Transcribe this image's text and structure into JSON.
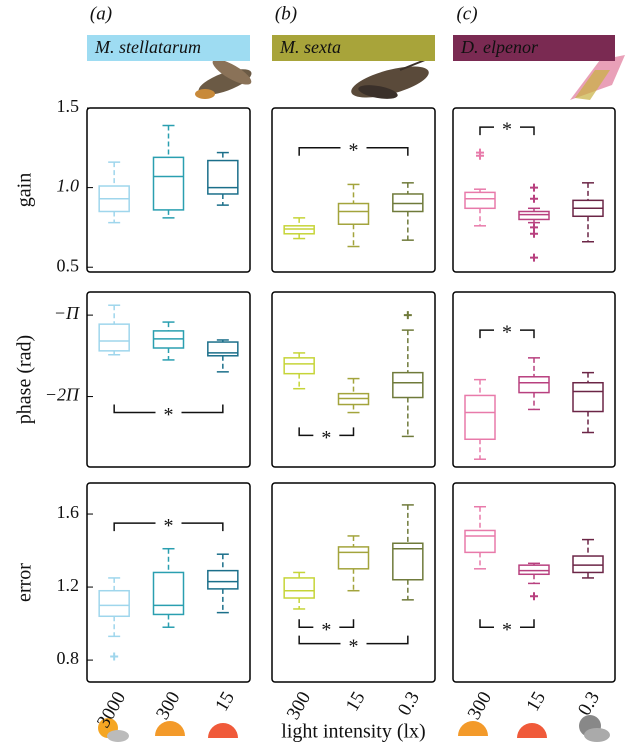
{
  "chart_data": [
    {
      "type": "box",
      "panel_label": "(a)",
      "title": "M. stellatarum",
      "title_color": "#9edcf2",
      "title_text_color": "#000000",
      "ylabel": "gain",
      "categories": [
        null,
        null,
        null
      ],
      "colors": [
        "#9fd6ec",
        "#2a9fb0",
        "#1b6f8a"
      ],
      "ylim": [
        0.47,
        1.5
      ],
      "yticks": [
        0.5,
        {
          "value": 1,
          "label": "1.0"
        },
        1.5
      ],
      "boxes": [
        {
          "whislo": 0.78,
          "q1": 0.85,
          "med": 0.93,
          "q3": 1.01,
          "whishi": 1.16,
          "fliers": []
        },
        {
          "whislo": 0.81,
          "q1": 0.86,
          "med": 1.07,
          "q3": 1.19,
          "whishi": 1.39,
          "fliers": []
        },
        {
          "whislo": 0.89,
          "q1": 0.96,
          "med": 1.0,
          "q3": 1.17,
          "whishi": 1.22,
          "fliers": []
        }
      ],
      "significance": []
    },
    {
      "type": "box",
      "panel_label": "(b)",
      "title": "M. sexta",
      "title_color": "#a8a43a",
      "title_text_color": "#000000",
      "categories": [
        null,
        null,
        null
      ],
      "colors": [
        "#c6d438",
        "#a3a43c",
        "#6f7a3a"
      ],
      "ylim": [
        0.47,
        1.5
      ],
      "boxes": [
        {
          "whislo": 0.68,
          "q1": 0.71,
          "med": 0.74,
          "q3": 0.76,
          "whishi": 0.81,
          "fliers": []
        },
        {
          "whislo": 0.63,
          "q1": 0.77,
          "med": 0.85,
          "q3": 0.9,
          "whishi": 1.02,
          "fliers": []
        },
        {
          "whislo": 0.67,
          "q1": 0.85,
          "med": 0.9,
          "q3": 0.96,
          "whishi": 1.03,
          "fliers": []
        }
      ],
      "significance": [
        {
          "pair": [
            0,
            2
          ],
          "y": 1.25,
          "tips": "down",
          "label": "*"
        }
      ]
    },
    {
      "type": "box",
      "panel_label": "(c)",
      "title": "D. elpenor",
      "title_color": "#7a2a52",
      "title_text_color": "#ffffff",
      "categories": [
        null,
        null,
        null
      ],
      "colors": [
        "#e87aaa",
        "#b8407f",
        "#6b2546"
      ],
      "ylim": [
        0.47,
        1.5
      ],
      "boxes": [
        {
          "whislo": 0.76,
          "q1": 0.87,
          "med": 0.93,
          "q3": 0.97,
          "whishi": 0.99,
          "fliers": [
            1.22,
            1.2
          ]
        },
        {
          "whislo": 0.78,
          "q1": 0.8,
          "med": 0.83,
          "q3": 0.85,
          "whishi": 0.87,
          "fliers": [
            1.0,
            0.93,
            0.75,
            0.71,
            0.56
          ]
        },
        {
          "whislo": 0.66,
          "q1": 0.82,
          "med": 0.87,
          "q3": 0.92,
          "whishi": 1.03,
          "fliers": []
        }
      ],
      "significance": [
        {
          "pair": [
            0,
            1
          ],
          "y": 1.38,
          "tips": "down",
          "label": "*"
        }
      ]
    },
    {
      "type": "box",
      "ylabel": "phase (rad)",
      "categories": [
        null,
        null,
        null
      ],
      "colors": [
        "#9fd6ec",
        "#2a9fb0",
        "#1b6f8a"
      ],
      "ylim": [
        -9.0,
        -2.25
      ],
      "yticks": [
        {
          "value": -3.1416,
          "label": "−Π"
        },
        {
          "value": -6.2832,
          "label": "−2Π"
        }
      ],
      "boxes": [
        {
          "whislo": -4.67,
          "q1": -4.52,
          "med": -4.14,
          "q3": -3.49,
          "whishi": -2.76,
          "fliers": []
        },
        {
          "whislo": -4.87,
          "q1": -4.41,
          "med": -4.06,
          "q3": -3.75,
          "whishi": -3.41,
          "fliers": []
        },
        {
          "whislo": -5.33,
          "q1": -4.71,
          "med": -4.6,
          "q3": -4.18,
          "whishi": -4.1,
          "fliers": []
        }
      ],
      "significance": [
        {
          "pair": [
            0,
            2
          ],
          "y": -6.9,
          "tips": "up",
          "label": "*"
        }
      ]
    },
    {
      "type": "box",
      "categories": [
        null,
        null,
        null
      ],
      "colors": [
        "#c6d438",
        "#a3a43c",
        "#6f7a3a"
      ],
      "ylim": [
        -9.0,
        -2.25
      ],
      "boxes": [
        {
          "whislo": -5.98,
          "q1": -5.4,
          "med": -5.02,
          "q3": -4.79,
          "whishi": -4.6,
          "fliers": []
        },
        {
          "whislo": -6.9,
          "q1": -6.59,
          "med": -6.36,
          "q3": -6.17,
          "whishi": -5.59,
          "fliers": []
        },
        {
          "whislo": -7.82,
          "q1": -6.32,
          "med": -5.75,
          "q3": -5.36,
          "whishi": -3.72,
          "fliers": [
            -3.14
          ]
        }
      ],
      "significance": [
        {
          "pair": [
            0,
            1
          ],
          "y": -7.78,
          "tips": "up",
          "label": "*"
        }
      ]
    },
    {
      "type": "box",
      "categories": [
        null,
        null,
        null
      ],
      "colors": [
        "#e87aaa",
        "#b8407f",
        "#6b2546"
      ],
      "ylim": [
        -9.0,
        -2.25
      ],
      "boxes": [
        {
          "whislo": -8.7,
          "q1": -7.93,
          "med": -6.9,
          "q3": -6.24,
          "whishi": -5.63,
          "fliers": []
        },
        {
          "whislo": -6.78,
          "q1": -6.13,
          "med": -5.75,
          "q3": -5.52,
          "whishi": -4.79,
          "fliers": []
        },
        {
          "whislo": -7.67,
          "q1": -6.86,
          "med": -6.09,
          "q3": -5.75,
          "whishi": -5.36,
          "fliers": []
        }
      ],
      "significance": [
        {
          "pair": [
            0,
            1
          ],
          "y": -3.72,
          "tips": "down",
          "label": "*"
        }
      ]
    },
    {
      "type": "box",
      "ylabel": "error",
      "categories": [
        "3000",
        "300",
        "15"
      ],
      "colors": [
        "#9fd6ec",
        "#2a9fb0",
        "#1b6f8a"
      ],
      "ylim": [
        0.68,
        1.77
      ],
      "yticks": [
        0.8,
        1.2,
        1.6
      ],
      "boxes": [
        {
          "whislo": 0.93,
          "q1": 1.04,
          "med": 1.1,
          "q3": 1.18,
          "whishi": 1.25,
          "fliers": [
            0.82
          ]
        },
        {
          "whislo": 0.98,
          "q1": 1.05,
          "med": 1.1,
          "q3": 1.28,
          "whishi": 1.41,
          "fliers": []
        },
        {
          "whislo": 1.06,
          "q1": 1.19,
          "med": 1.23,
          "q3": 1.29,
          "whishi": 1.38,
          "fliers": []
        }
      ],
      "significance": [
        {
          "pair": [
            0,
            2
          ],
          "y": 1.55,
          "tips": "down",
          "label": "*"
        }
      ]
    },
    {
      "type": "box",
      "xlabel": "light intensity (lx)",
      "categories": [
        "300",
        "15",
        "0.3"
      ],
      "colors": [
        "#c6d438",
        "#a3a43c",
        "#6f7a3a"
      ],
      "ylim": [
        0.68,
        1.77
      ],
      "boxes": [
        {
          "whislo": 1.08,
          "q1": 1.14,
          "med": 1.18,
          "q3": 1.25,
          "whishi": 1.28,
          "fliers": []
        },
        {
          "whislo": 1.18,
          "q1": 1.3,
          "med": 1.39,
          "q3": 1.42,
          "whishi": 1.48,
          "fliers": []
        },
        {
          "whislo": 1.13,
          "q1": 1.24,
          "med": 1.41,
          "q3": 1.44,
          "whishi": 1.65,
          "fliers": []
        }
      ],
      "significance": [
        {
          "pair": [
            0,
            1
          ],
          "y": 0.98,
          "tips": "up",
          "label": "*"
        },
        {
          "pair": [
            0,
            2
          ],
          "y": 0.89,
          "tips": "up",
          "label": "*"
        }
      ]
    },
    {
      "type": "box",
      "categories": [
        "300",
        "15",
        "0.3"
      ],
      "colors": [
        "#e87aaa",
        "#b8407f",
        "#6b2546"
      ],
      "ylim": [
        0.68,
        1.77
      ],
      "boxes": [
        {
          "whislo": 1.3,
          "q1": 1.39,
          "med": 1.48,
          "q3": 1.51,
          "whishi": 1.64,
          "fliers": []
        },
        {
          "whislo": 1.22,
          "q1": 1.27,
          "med": 1.29,
          "q3": 1.32,
          "whishi": 1.33,
          "fliers": [
            1.15
          ]
        },
        {
          "whislo": 1.25,
          "q1": 1.28,
          "med": 1.32,
          "q3": 1.37,
          "whishi": 1.46,
          "fliers": []
        }
      ],
      "significance": [
        {
          "pair": [
            0,
            1
          ],
          "y": 0.98,
          "tips": "up",
          "label": "*"
        }
      ]
    }
  ]
}
